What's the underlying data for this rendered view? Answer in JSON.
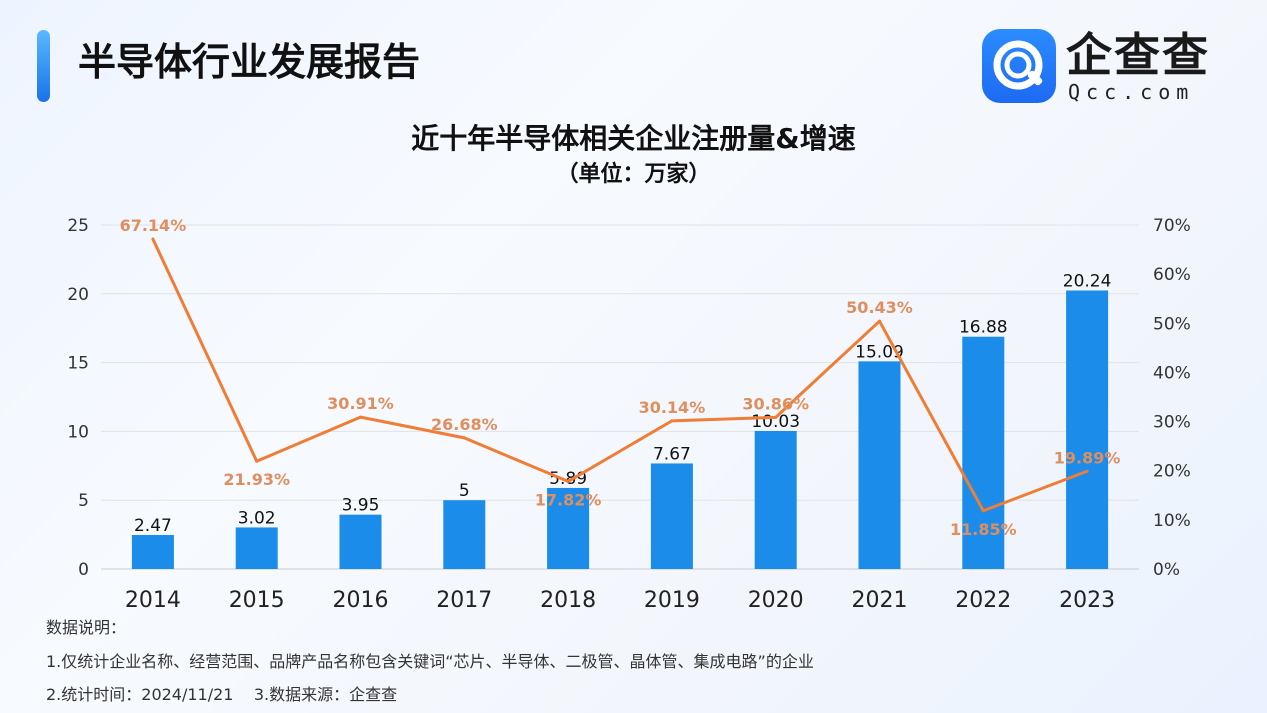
{
  "header": {
    "title": "半导体行业发展报告"
  },
  "logo": {
    "name": "企查查",
    "domain": "Qcc.com"
  },
  "chart_data": {
    "type": "bar",
    "title": "近十年半导体相关企业注册量&增速",
    "subtitle": "（单位：万家）",
    "categories": [
      "2014",
      "2015",
      "2016",
      "2017",
      "2018",
      "2019",
      "2020",
      "2021",
      "2022",
      "2023"
    ],
    "series": [
      {
        "type": "bar",
        "axis": "left",
        "color": "#1b8ce9",
        "values": [
          2.47,
          3.02,
          3.95,
          5,
          5.89,
          7.67,
          10.03,
          15.09,
          16.88,
          20.24
        ],
        "labels": [
          "2.47",
          "3.02",
          "3.95",
          "5",
          "5.89",
          "7.67",
          "10.03",
          "15.09",
          "16.88",
          "20.24"
        ]
      },
      {
        "type": "line",
        "axis": "right",
        "color": "#f07d35",
        "label_color": "#df8f5f",
        "values": [
          67.14,
          21.93,
          30.91,
          26.68,
          17.82,
          30.14,
          30.86,
          50.43,
          11.85,
          19.89
        ],
        "labels": [
          "67.14%",
          "21.93%",
          "30.91%",
          "26.68%",
          "17.82%",
          "30.14%",
          "30.86%",
          "50.43%",
          "11.85%",
          "19.89%"
        ]
      }
    ],
    "y_left": {
      "min": 0,
      "max": 25,
      "ticks": [
        "0",
        "5",
        "10",
        "15",
        "20",
        "25"
      ]
    },
    "y_right": {
      "min": 0,
      "max": 70,
      "ticks": [
        "0%",
        "10%",
        "20%",
        "30%",
        "40%",
        "50%",
        "60%",
        "70%"
      ]
    },
    "grid": true
  },
  "notes": {
    "heading": "数据说明：",
    "line1": "1.仅统计企业名称、经营范围、品牌产品名称包含关键词“芯片、半导体、二极管、晶体管、集成电路”的企业",
    "line2": "2.统计时间：2024/11/21    3.数据来源：企查查"
  }
}
